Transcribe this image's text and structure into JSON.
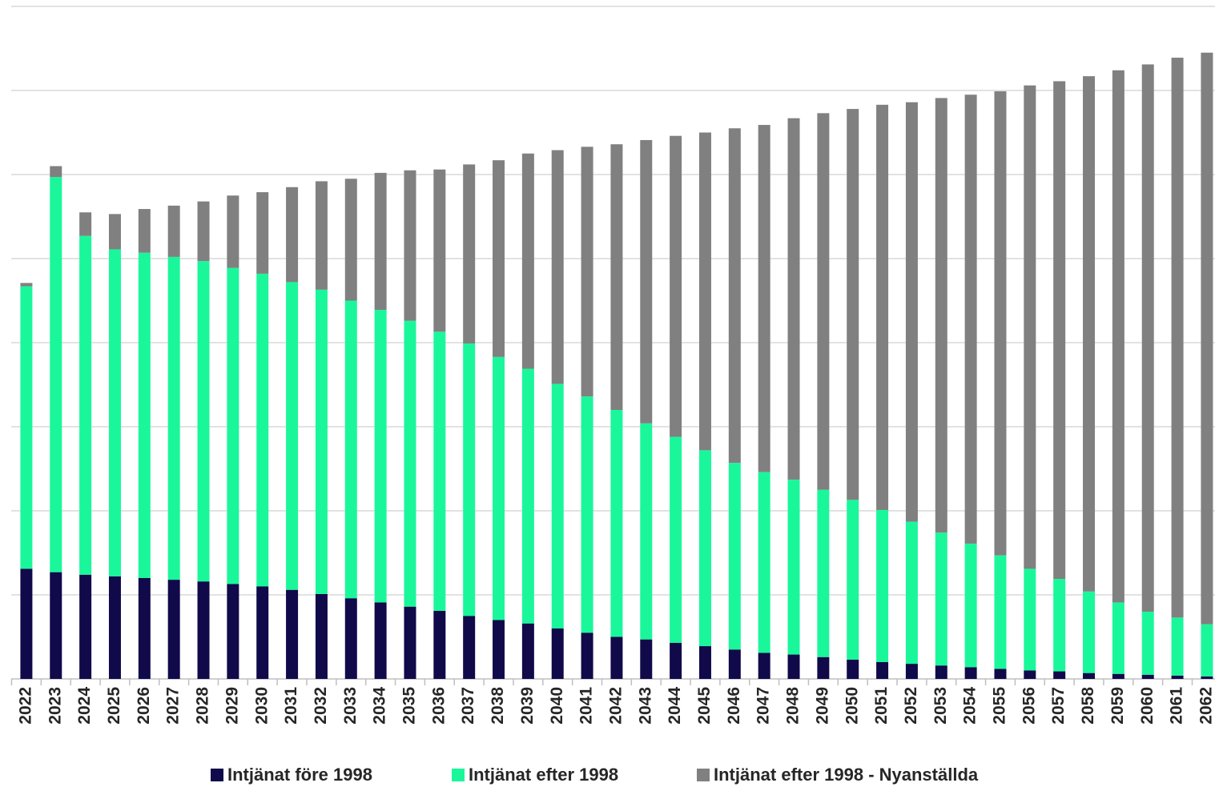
{
  "chart_data": {
    "type": "stacked_bar",
    "categories": [
      "2022",
      "2023",
      "2024",
      "2025",
      "2026",
      "2027",
      "2028",
      "2029",
      "2030",
      "2031",
      "2032",
      "2033",
      "2034",
      "2035",
      "2036",
      "2037",
      "2038",
      "2039",
      "2040",
      "2041",
      "2042",
      "2043",
      "2044",
      "2045",
      "2046",
      "2047",
      "2048",
      "2049",
      "2050",
      "2051",
      "2052",
      "2053",
      "2054",
      "2055",
      "2056",
      "2057",
      "2058",
      "2059",
      "2060",
      "2061",
      "2062"
    ],
    "series": [
      {
        "name": "Intjänat före 1998",
        "color": "#10094a",
        "values": [
          1.31,
          1.27,
          1.24,
          1.22,
          1.2,
          1.18,
          1.16,
          1.13,
          1.1,
          1.06,
          1.01,
          0.96,
          0.91,
          0.86,
          0.81,
          0.75,
          0.7,
          0.66,
          0.6,
          0.55,
          0.5,
          0.47,
          0.43,
          0.39,
          0.35,
          0.31,
          0.29,
          0.26,
          0.23,
          0.2,
          0.18,
          0.16,
          0.14,
          0.12,
          0.1,
          0.09,
          0.07,
          0.06,
          0.05,
          0.04,
          0.03
        ]
      },
      {
        "name": "Intjänat efter 1998",
        "color": "#1af79b",
        "values": [
          3.36,
          4.7,
          4.03,
          3.89,
          3.87,
          3.84,
          3.81,
          3.76,
          3.72,
          3.66,
          3.62,
          3.54,
          3.48,
          3.4,
          3.32,
          3.24,
          3.13,
          3.03,
          2.91,
          2.81,
          2.7,
          2.57,
          2.45,
          2.33,
          2.22,
          2.15,
          2.08,
          1.99,
          1.9,
          1.81,
          1.69,
          1.58,
          1.47,
          1.35,
          1.21,
          1.1,
          0.97,
          0.85,
          0.75,
          0.69,
          0.62
        ]
      },
      {
        "name": "Intjänat efter 1998 - Nyanställda",
        "color": "#808080",
        "values": [
          0.04,
          0.13,
          0.28,
          0.42,
          0.52,
          0.61,
          0.71,
          0.86,
          0.97,
          1.13,
          1.29,
          1.45,
          1.63,
          1.79,
          1.93,
          2.13,
          2.34,
          2.56,
          2.78,
          2.97,
          3.16,
          3.37,
          3.58,
          3.78,
          3.98,
          4.13,
          4.3,
          4.48,
          4.65,
          4.82,
          4.99,
          5.17,
          5.34,
          5.52,
          5.75,
          5.92,
          6.13,
          6.33,
          6.51,
          6.66,
          6.8
        ]
      }
    ],
    "ylim": [
      0,
      8
    ],
    "yticks": [
      0,
      1,
      2,
      3,
      4,
      5,
      6,
      7,
      8
    ],
    "grid": true
  }
}
